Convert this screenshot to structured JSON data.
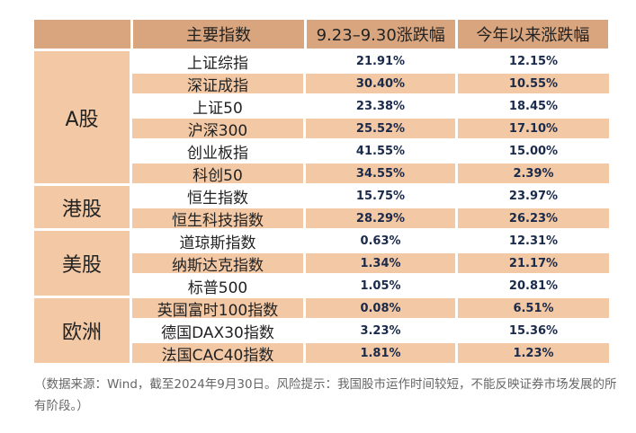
{
  "header": {
    "col_index": "主要指数",
    "col_change": "9.23–9.30涨跌幅",
    "col_ytd": "今年以来涨跌幅"
  },
  "groups": [
    {
      "name": "A股",
      "rows": [
        {
          "index": "上证综指",
          "change": "21.91%",
          "ytd": "12.15%"
        },
        {
          "index": "深证成指",
          "change": "30.40%",
          "ytd": "10.55%"
        },
        {
          "index": "上证50",
          "change": "23.38%",
          "ytd": "18.45%"
        },
        {
          "index": "沪深300",
          "change": "25.52%",
          "ytd": "17.10%"
        },
        {
          "index": "创业板指",
          "change": "41.55%",
          "ytd": "15.00%"
        },
        {
          "index": "科创50",
          "change": "34.55%",
          "ytd": "2.39%"
        }
      ]
    },
    {
      "name": "港股",
      "rows": [
        {
          "index": "恒生指数",
          "change": "15.75%",
          "ytd": "23.97%"
        },
        {
          "index": "恒生科技指数",
          "change": "28.29%",
          "ytd": "26.23%"
        }
      ]
    },
    {
      "name": "美股",
      "rows": [
        {
          "index": "道琼斯指数",
          "change": "0.63%",
          "ytd": "12.31%"
        },
        {
          "index": "纳斯达克指数",
          "change": "1.34%",
          "ytd": "21.17%"
        },
        {
          "index": "标普500",
          "change": "1.05%",
          "ytd": "20.81%"
        }
      ]
    },
    {
      "name": "欧洲",
      "rows": [
        {
          "index": "英国富时100指数",
          "change": "0.08%",
          "ytd": "6.51%"
        },
        {
          "index": "德国DAX30指数",
          "change": "3.23%",
          "ytd": "15.36%"
        },
        {
          "index": "法国CAC40指数",
          "change": "1.81%",
          "ytd": "1.23%"
        }
      ]
    }
  ],
  "note": "（数据来源：Wind，截至2024年9月30日。风险提示：我国股市运作时间较短，不能反映证券市场发展的所有阶段。）"
}
